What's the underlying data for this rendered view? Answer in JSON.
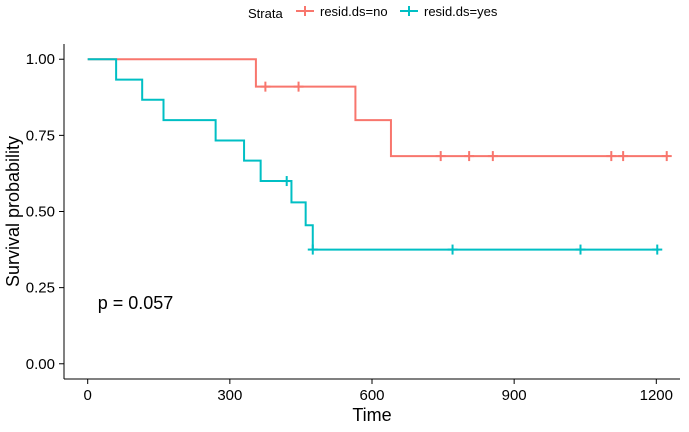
{
  "chart_data": {
    "type": "line",
    "step": true,
    "xlabel": "Time",
    "ylabel": "Survival probability",
    "xlim": [
      -50,
      1250
    ],
    "ylim": [
      -0.05,
      1.05
    ],
    "x_ticks": [
      0,
      300,
      600,
      900,
      1200
    ],
    "y_ticks": [
      0.0,
      0.25,
      0.5,
      0.75,
      1.0
    ],
    "x_tick_labels": [
      "0",
      "300",
      "600",
      "900",
      "1200"
    ],
    "y_tick_labels": [
      "0.00",
      "0.25",
      "0.50",
      "0.75",
      "1.00"
    ],
    "grid": false,
    "legend_position": "top",
    "legend_title": "Strata",
    "annotation": "p = 0.057",
    "annotation_at": {
      "x": 0,
      "y": 0.2
    },
    "series": [
      {
        "name": "resid.ds=no",
        "color": "#F8766D",
        "steps": [
          [
            0,
            1.0
          ],
          [
            355,
            0.91
          ],
          [
            565,
            0.8
          ],
          [
            640,
            0.682
          ],
          [
            1225,
            0.682
          ]
        ],
        "censors": [
          [
            375,
            0.91
          ],
          [
            445,
            0.91
          ],
          [
            745,
            0.682
          ],
          [
            805,
            0.682
          ],
          [
            855,
            0.682
          ],
          [
            1105,
            0.682
          ],
          [
            1130,
            0.682
          ],
          [
            1222,
            0.682
          ]
        ]
      },
      {
        "name": "resid.ds=yes",
        "color": "#00BFC4",
        "steps": [
          [
            0,
            1.0
          ],
          [
            60,
            0.933
          ],
          [
            115,
            0.867
          ],
          [
            160,
            0.8
          ],
          [
            270,
            0.733
          ],
          [
            330,
            0.667
          ],
          [
            365,
            0.6
          ],
          [
            430,
            0.53
          ],
          [
            460,
            0.455
          ],
          [
            475,
            0.375
          ],
          [
            1205,
            0.375
          ]
        ],
        "censors": [
          [
            420,
            0.6
          ],
          [
            475,
            0.375
          ],
          [
            770,
            0.375
          ],
          [
            1040,
            0.375
          ],
          [
            1202,
            0.375
          ]
        ]
      }
    ]
  }
}
